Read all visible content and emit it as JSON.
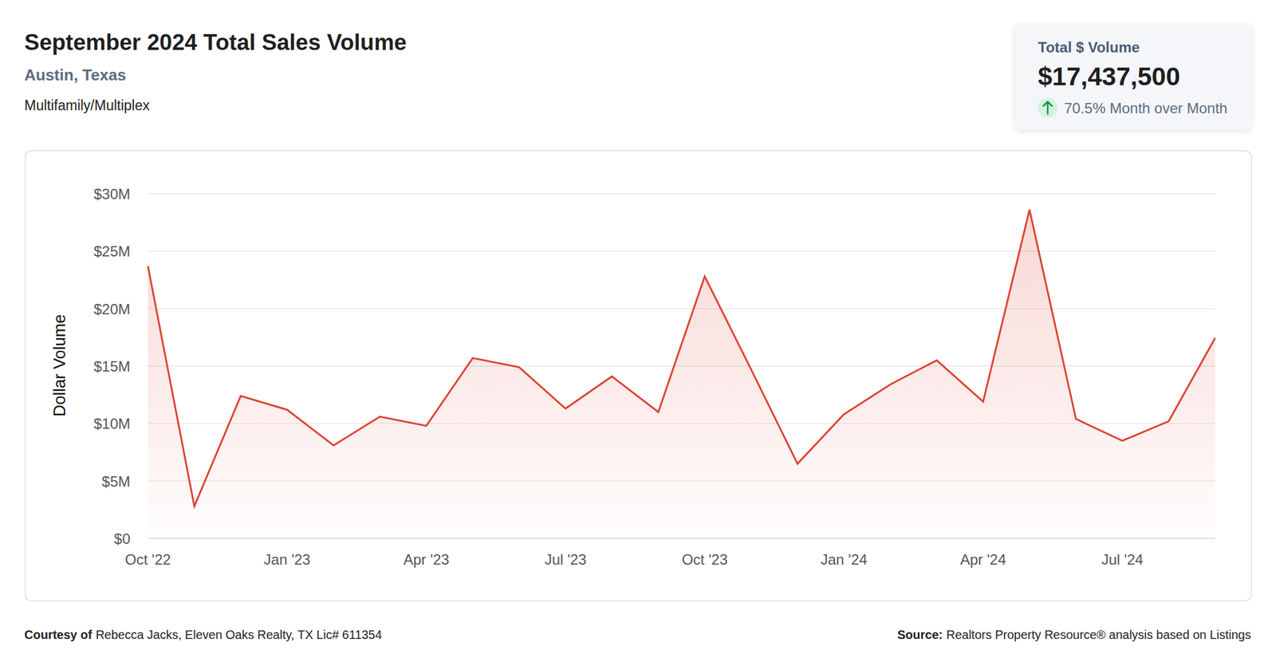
{
  "chart_data": {
    "type": "line",
    "title": "September 2024 Total Sales Volume",
    "subtitle": "Austin, Texas",
    "annotations": {
      "property_type": "Multifamily/Multiplex",
      "kpi_label": "Total $ Volume",
      "kpi_value": "$17,437,500",
      "kpi_change": "70.5% Month over Month",
      "courtesy_label": "Courtesy of",
      "courtesy_text": "Rebecca Jacks, Eleven Oaks Realty, TX Lic# 611354",
      "source_label": "Source:",
      "source_text": "Realtors Property Resource® analysis based on Listings"
    },
    "y_label": "Dollar Volume",
    "categories": [
      "Oct '22",
      null,
      null,
      "Jan '23",
      null,
      null,
      "Apr '23",
      null,
      null,
      "Jul '23",
      null,
      null,
      "Oct '23",
      null,
      null,
      "Jan '24",
      null,
      null,
      "Apr '24",
      null,
      null,
      "Jul '24",
      null,
      null
    ],
    "values": [
      23.7,
      2.8,
      12.4,
      11.2,
      8.1,
      10.6,
      9.8,
      15.7,
      14.9,
      11.3,
      14.1,
      11.0,
      22.8,
      14.7,
      6.5,
      10.8,
      13.4,
      15.5,
      11.9,
      28.6,
      10.4,
      8.5,
      10.2,
      17.4375
    ],
    "color": "#dc4332",
    "ylim": [
      0,
      30
    ],
    "yticks": [
      {
        "value": 0,
        "label": "$0"
      },
      {
        "value": 5,
        "label": "$5M"
      },
      {
        "value": 10,
        "label": "$10M"
      },
      {
        "value": 15,
        "label": "$15M"
      },
      {
        "value": 20,
        "label": "$20M"
      },
      {
        "value": 25,
        "label": "$25M"
      },
      {
        "value": 30,
        "label": "$30M"
      }
    ],
    "grid": true
  }
}
